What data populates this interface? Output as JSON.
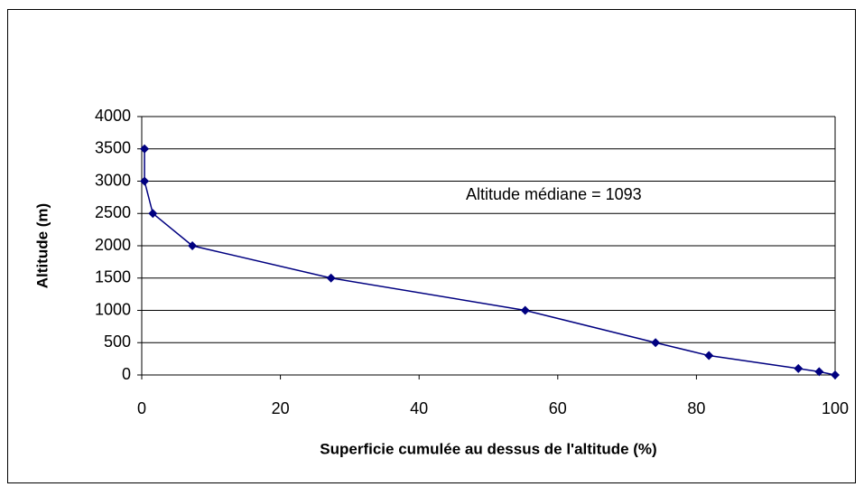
{
  "chart_data": {
    "type": "line",
    "x_label": "Superficie cumulée au dessus de l'altitude (%)",
    "y_label": "Altitude (m)",
    "annotation": "Altitude médiane = 1093",
    "x": [
      0.4,
      0.4,
      1.6,
      7.3,
      27.3,
      55.3,
      74.1,
      81.8,
      94.7,
      97.7,
      100
    ],
    "series": [
      {
        "name": "Altitude",
        "color": "#000080",
        "values": [
          3500,
          3000,
          2500,
          2000,
          1500,
          1000,
          500,
          300,
          100,
          50,
          0
        ]
      }
    ],
    "xlim": [
      0,
      100
    ],
    "xticks": [
      0,
      20,
      40,
      60,
      80,
      100
    ],
    "ylim": [
      0,
      4000
    ],
    "yticks": [
      0,
      500,
      1000,
      1500,
      2000,
      2500,
      3000,
      3500,
      4000
    ],
    "grid": true
  }
}
